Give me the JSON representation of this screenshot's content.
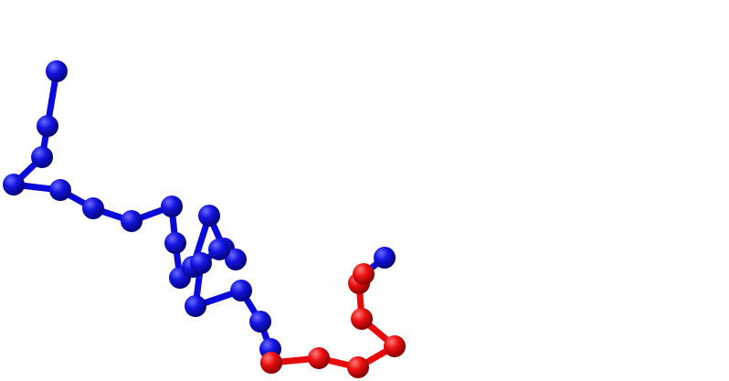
{
  "diagram": {
    "type": "ball-and-stick-polymer-chain",
    "colors": {
      "background": "#ffffff",
      "segment_a": "#0a0ad8",
      "segment_b": "#e60a0a"
    },
    "segments": [
      {
        "id": "blue-segment",
        "color_key": "segment_a",
        "bead_count": 21
      },
      {
        "id": "red-segment",
        "color_key": "segment_b",
        "bead_count": 7
      },
      {
        "id": "blue-tail",
        "color_key": "segment_a",
        "bead_count": 1
      }
    ]
  }
}
